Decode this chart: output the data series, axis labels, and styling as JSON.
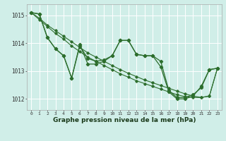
{
  "background_color": "#d0eee8",
  "grid_color": "#ffffff",
  "line_color": "#2d6e2d",
  "xlabel": "Graphe pression niveau de la mer (hPa)",
  "ylim": [
    1011.6,
    1015.4
  ],
  "xlim": [
    -0.5,
    23.5
  ],
  "yticks": [
    1012,
    1013,
    1014,
    1015
  ],
  "ytick_labels": [
    "1012",
    "1013",
    "1014",
    "1015"
  ],
  "xticks": [
    0,
    1,
    2,
    3,
    4,
    5,
    6,
    7,
    8,
    9,
    10,
    11,
    12,
    13,
    14,
    15,
    16,
    17,
    18,
    19,
    20,
    21,
    22,
    23
  ],
  "y_smooth1": [
    1015.1,
    1014.85,
    1014.6,
    1014.35,
    1014.15,
    1013.9,
    1013.7,
    1013.5,
    1013.35,
    1013.2,
    1013.05,
    1012.9,
    1012.78,
    1012.65,
    1012.55,
    1012.45,
    1012.35,
    1012.25,
    1012.15,
    1012.08,
    1012.05,
    1012.05,
    1012.1,
    1013.1
  ],
  "y_smooth2": [
    1015.1,
    1014.9,
    1014.65,
    1014.45,
    1014.25,
    1014.05,
    1013.85,
    1013.65,
    1013.5,
    1013.35,
    1013.2,
    1013.05,
    1012.92,
    1012.8,
    1012.68,
    1012.58,
    1012.48,
    1012.38,
    1012.28,
    1012.18,
    1012.1,
    1012.05,
    1012.1,
    1013.1
  ],
  "y_jagged1": [
    1015.1,
    1015.05,
    1014.2,
    1013.8,
    1013.55,
    1012.75,
    1013.95,
    1013.25,
    1013.25,
    1013.35,
    1013.55,
    1014.1,
    1014.1,
    1013.6,
    1013.55,
    1013.55,
    1013.35,
    1012.3,
    1012.05,
    1012.05,
    1012.15,
    1012.4,
    1013.05,
    1013.1
  ],
  "y_jagged2": [
    1015.1,
    1015.05,
    1014.2,
    1013.8,
    1013.55,
    1012.75,
    1013.9,
    1013.45,
    1013.35,
    1013.4,
    1013.55,
    1014.1,
    1014.1,
    1013.6,
    1013.55,
    1013.55,
    1013.15,
    1012.25,
    1012.0,
    1012.0,
    1012.1,
    1012.45,
    1013.05,
    1013.1
  ]
}
